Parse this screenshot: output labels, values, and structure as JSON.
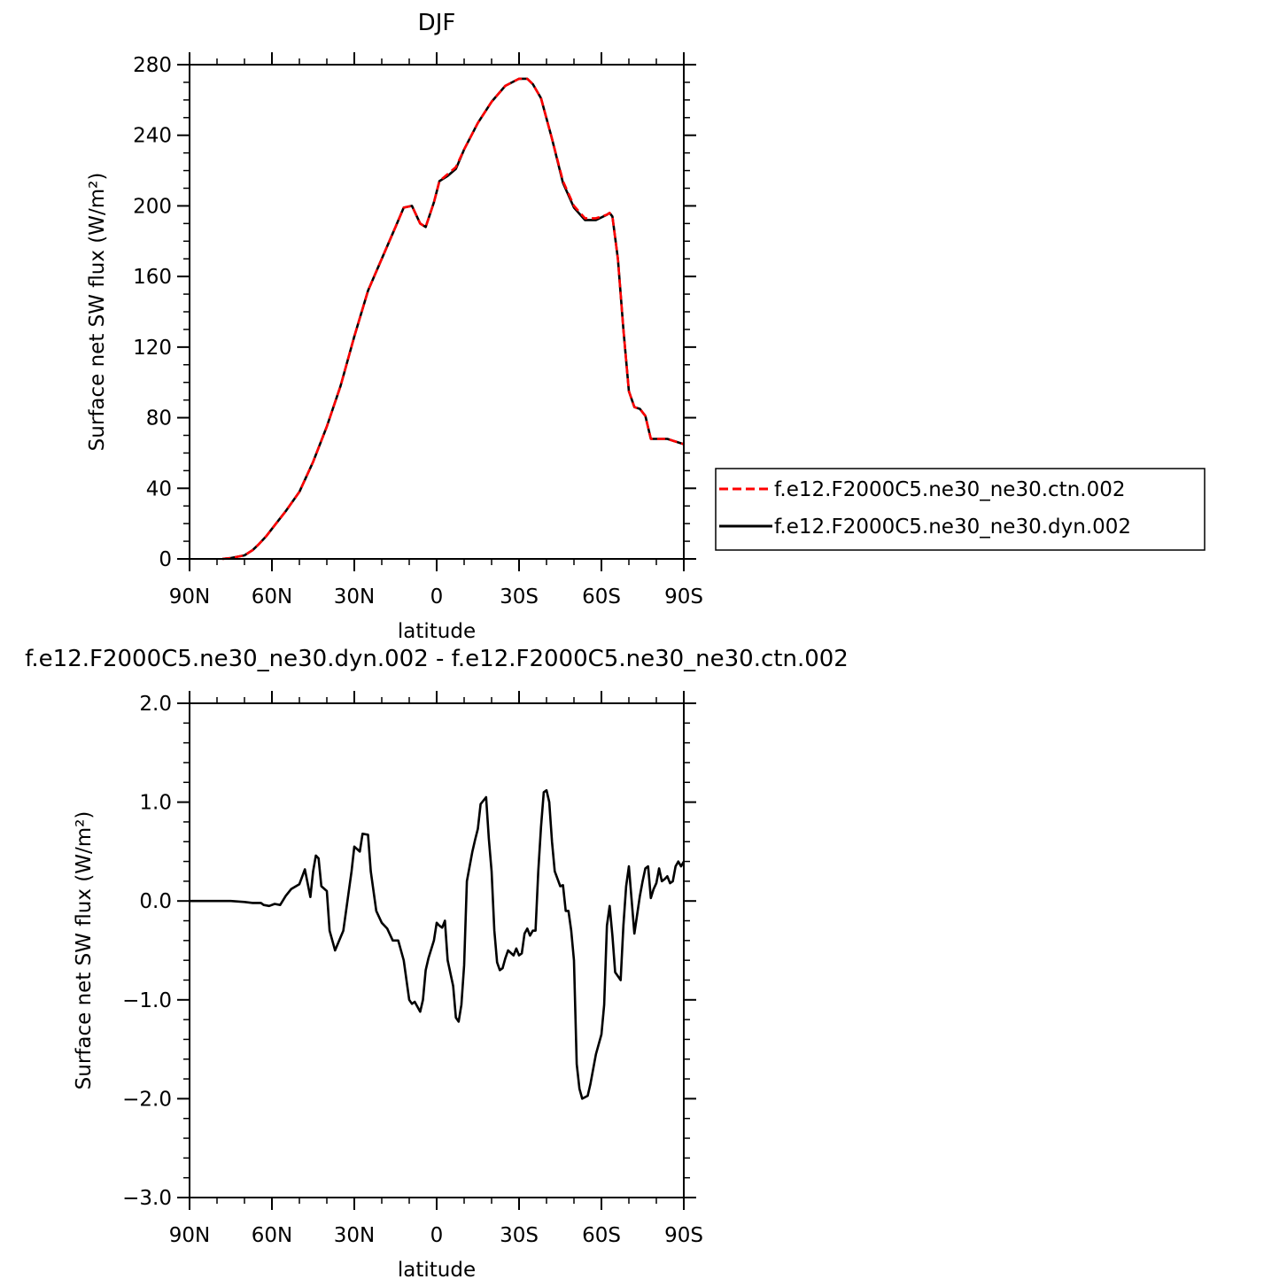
{
  "chart_data": [
    {
      "type": "line",
      "title": "DJF",
      "xlabel": "latitude",
      "ylabel": "Surface net SW flux (W/m²)",
      "x_tick_labels": [
        "90N",
        "60N",
        "30N",
        "0",
        "30S",
        "60S",
        "90S"
      ],
      "xlim": [
        90,
        -90
      ],
      "ylim": [
        0,
        280
      ],
      "y_ticks": [
        0,
        40,
        80,
        120,
        160,
        200,
        240,
        280
      ],
      "y_tick_labels": [
        "0",
        "40",
        "80",
        "120",
        "160",
        "200",
        "240",
        "280"
      ],
      "legend_position": "right",
      "x": [
        78,
        75,
        70,
        67,
        65,
        62,
        60,
        55,
        50,
        45,
        40,
        35,
        30,
        25,
        20,
        15,
        12,
        9,
        6,
        4,
        1,
        -1,
        -4,
        -7,
        -10,
        -15,
        -20,
        -25,
        -30,
        -33,
        -35,
        -38,
        -42,
        -46,
        -50,
        -54,
        -58,
        -62,
        -63,
        -64,
        -66,
        -68,
        -70,
        -72,
        -74,
        -76,
        -78,
        -80,
        -84,
        -88,
        -90
      ],
      "series": [
        {
          "name": "f.e12.F2000C5.ne30_ne30.ctn.002",
          "color": "#ff0000",
          "dash": "dashed",
          "values": [
            0,
            0.5,
            2,
            5,
            8,
            13,
            17,
            27,
            38,
            55,
            75,
            98,
            126,
            152,
            170,
            188,
            199,
            200,
            190,
            188,
            202,
            214,
            218,
            222,
            232,
            247,
            259,
            268,
            272,
            272,
            269,
            261,
            238,
            214,
            200,
            193,
            193,
            195,
            196,
            194,
            170,
            130,
            95,
            86,
            85,
            81,
            68,
            68,
            68,
            66,
            65
          ]
        },
        {
          "name": "f.e12.F2000C5.ne30_ne30.dyn.002",
          "color": "#000000",
          "dash": "solid",
          "values": [
            0,
            0.5,
            2,
            5,
            8,
            13,
            17,
            27,
            38,
            55,
            75,
            98,
            126,
            152,
            170,
            188,
            199,
            200,
            190,
            188,
            202,
            214,
            217,
            221,
            232,
            247,
            259,
            268,
            272,
            272,
            269,
            261,
            238,
            213,
            199,
            192,
            192,
            195,
            196,
            194,
            170,
            130,
            95,
            86,
            85,
            81,
            68,
            68,
            68,
            66,
            65
          ]
        }
      ]
    },
    {
      "type": "line",
      "title": "f.e12.F2000C5.ne30_ne30.dyn.002 - f.e12.F2000C5.ne30_ne30.ctn.002",
      "xlabel": "latitude",
      "ylabel": "Surface net SW flux (W/m²)",
      "x_tick_labels": [
        "90N",
        "60N",
        "30N",
        "0",
        "30S",
        "60S",
        "90S"
      ],
      "xlim": [
        90,
        -90
      ],
      "ylim": [
        -3.0,
        2.0
      ],
      "y_ticks": [
        -3.0,
        -2.0,
        -1.0,
        0.0,
        1.0,
        2.0
      ],
      "y_tick_labels": [
        "−3.0",
        "−2.0",
        "−1.0",
        "0.0",
        "1.0",
        "2.0"
      ],
      "x": [
        90,
        80,
        75,
        70,
        67,
        64,
        63,
        61,
        59,
        57,
        55,
        53,
        50,
        48,
        46,
        45,
        44,
        43,
        42,
        40,
        39,
        37,
        34,
        33,
        32,
        31,
        30,
        28,
        27,
        25,
        24,
        22,
        20,
        18,
        16,
        14,
        12,
        10,
        9,
        8,
        6,
        5,
        4,
        3,
        1,
        0,
        -1,
        -2,
        -3,
        -4,
        -6,
        -7,
        -8,
        -9,
        -10,
        -11,
        -12,
        -13,
        -14,
        -15,
        -16,
        -18,
        -19,
        -20,
        -21,
        -22,
        -23,
        -24,
        -25,
        -26,
        -28,
        -29,
        -30,
        -31,
        -32,
        -33,
        -34,
        -35,
        -36,
        -37,
        -38,
        -39,
        -40,
        -41,
        -42,
        -43,
        -45,
        -46,
        -47,
        -48,
        -49,
        -50,
        -51,
        -52,
        -53,
        -55,
        -56,
        -57,
        -58,
        -60,
        -61,
        -62,
        -63,
        -64,
        -65,
        -67,
        -68,
        -69,
        -70,
        -72,
        -74,
        -75,
        -76,
        -77,
        -78,
        -79,
        -80,
        -81,
        -82,
        -83,
        -84,
        -85,
        -86,
        -87,
        -88,
        -89,
        -90
      ],
      "series": [
        {
          "color": "#000000",
          "dash": "solid",
          "values": [
            0,
            0,
            0,
            -0.01,
            -0.02,
            -0.02,
            -0.04,
            -0.05,
            -0.03,
            -0.04,
            0.05,
            0.12,
            0.17,
            0.32,
            0.04,
            0.3,
            0.46,
            0.43,
            0.15,
            0.1,
            -0.3,
            -0.5,
            -0.3,
            -0.1,
            0.1,
            0.3,
            0.55,
            0.5,
            0.68,
            0.67,
            0.3,
            -0.1,
            -0.22,
            -0.28,
            -0.4,
            -0.4,
            -0.6,
            -1.0,
            -1.04,
            -1.02,
            -1.12,
            -1.0,
            -0.7,
            -0.58,
            -0.4,
            -0.22,
            -0.25,
            -0.27,
            -0.2,
            -0.6,
            -0.86,
            -1.18,
            -1.22,
            -1.05,
            -0.65,
            0.2,
            0.35,
            0.5,
            0.62,
            0.73,
            0.98,
            1.05,
            0.63,
            0.3,
            -0.3,
            -0.62,
            -0.7,
            -0.68,
            -0.58,
            -0.5,
            -0.55,
            -0.48,
            -0.55,
            -0.53,
            -0.33,
            -0.28,
            -0.35,
            -0.3,
            -0.3,
            0.3,
            0.75,
            1.1,
            1.12,
            1.0,
            0.6,
            0.3,
            0.15,
            0.16,
            -0.1,
            -0.1,
            -0.3,
            -0.6,
            -1.65,
            -1.9,
            -2.0,
            -1.97,
            -1.85,
            -1.7,
            -1.55,
            -1.35,
            -1.05,
            -0.25,
            -0.05,
            -0.35,
            -0.72,
            -0.8,
            -0.25,
            0.15,
            0.35,
            -0.33,
            0.05,
            0.2,
            0.33,
            0.35,
            0.03,
            0.12,
            0.18,
            0.33,
            0.2,
            0.22,
            0.25,
            0.18,
            0.2,
            0.35,
            0.4,
            0.35,
            0.4
          ]
        }
      ]
    }
  ]
}
